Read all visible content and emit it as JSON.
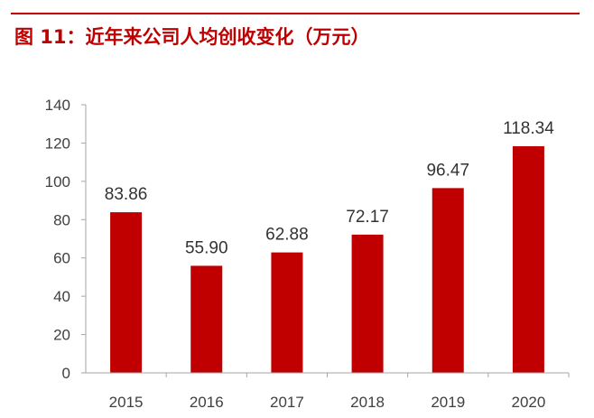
{
  "page": {
    "title": "图 11：近年来公司人均创收变化（万元）"
  },
  "colors": {
    "accent": "#c00000",
    "bar": "#c00000",
    "axis": "#a6a6a6",
    "text": "#404040"
  },
  "chart_data": {
    "type": "bar",
    "title": "图 11：近年来公司人均创收变化（万元）",
    "categories": [
      "2015",
      "2016",
      "2017",
      "2018",
      "2019",
      "2020"
    ],
    "values": [
      83.86,
      55.9,
      62.88,
      72.17,
      96.47,
      118.34
    ],
    "value_labels": [
      "83.86",
      "55.90",
      "62.88",
      "72.17",
      "96.47",
      "118.34"
    ],
    "ylim": [
      0,
      140
    ],
    "yticks": [
      0,
      20,
      40,
      60,
      80,
      100,
      120,
      140
    ],
    "xlabel": "",
    "ylabel": "",
    "grid": false,
    "legend": "none"
  }
}
